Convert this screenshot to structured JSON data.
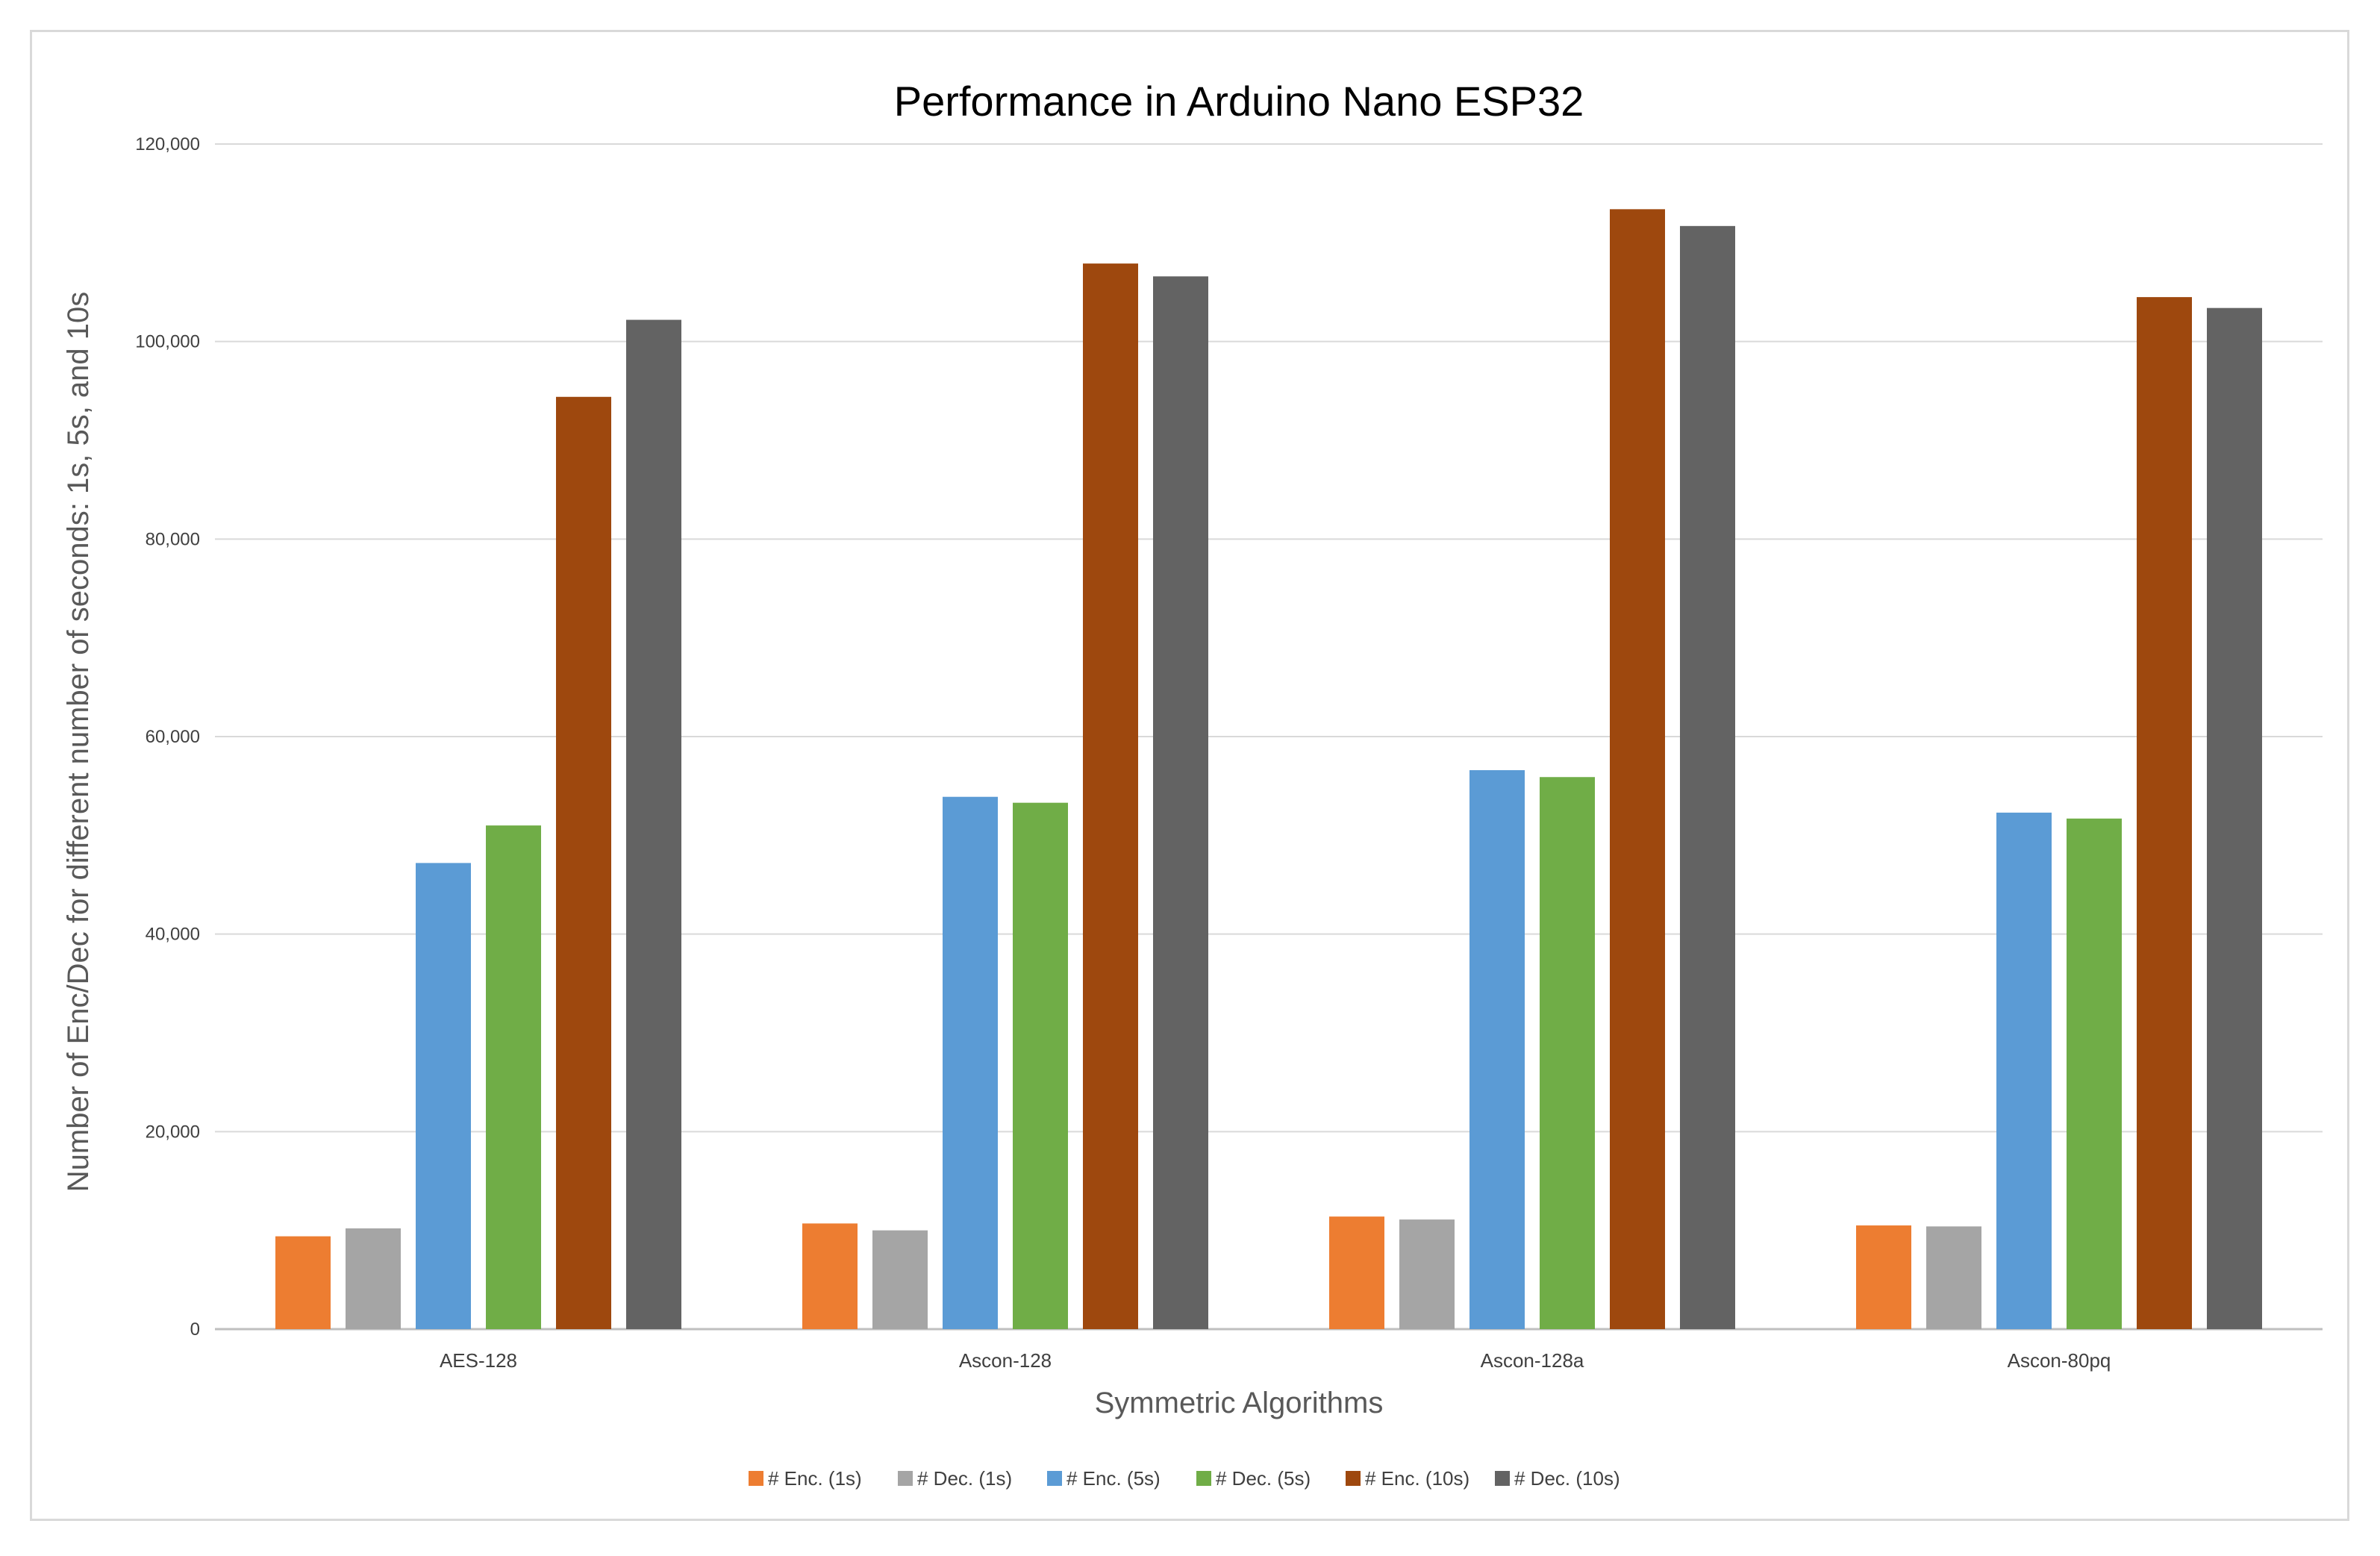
{
  "chart_data": {
    "type": "bar",
    "title": "Performance in Arduino Nano ESP32",
    "xlabel": "Symmetric Algorithms",
    "ylabel": "Number of Enc/Dec  for different number of seconds: 1s, 5s, and 10s",
    "ylim": [
      0,
      120000
    ],
    "yticks": [
      0,
      20000,
      40000,
      60000,
      80000,
      100000,
      120000
    ],
    "ytick_labels": [
      "0",
      "20,000",
      "40,000",
      "60,000",
      "80,000",
      "100,000",
      "120,000"
    ],
    "grid": true,
    "legend_position": "bottom",
    "categories": [
      "AES-128",
      "Ascon-128",
      "Ascon-128a",
      "Ascon-80pq"
    ],
    "series": [
      {
        "name": "# Enc. (1s)",
        "color": "#ed7d31",
        "values": [
          9400,
          10700,
          11400,
          10500
        ]
      },
      {
        "name": "# Dec. (1s)",
        "color": "#a5a5a5",
        "values": [
          10200,
          10000,
          11100,
          10400
        ]
      },
      {
        "name": "# Enc. (5s)",
        "color": "#5b9bd5",
        "values": [
          47200,
          53900,
          56600,
          52300
        ]
      },
      {
        "name": "# Dec. (5s)",
        "color": "#70ad47",
        "values": [
          51000,
          53300,
          55900,
          51700
        ]
      },
      {
        "name": "# Enc. (10s)",
        "color": "#9e480e",
        "values": [
          94400,
          107900,
          113400,
          104500
        ]
      },
      {
        "name": "# Dec. (10s)",
        "color": "#636363",
        "values": [
          102200,
          106600,
          111700,
          103400
        ]
      }
    ]
  }
}
